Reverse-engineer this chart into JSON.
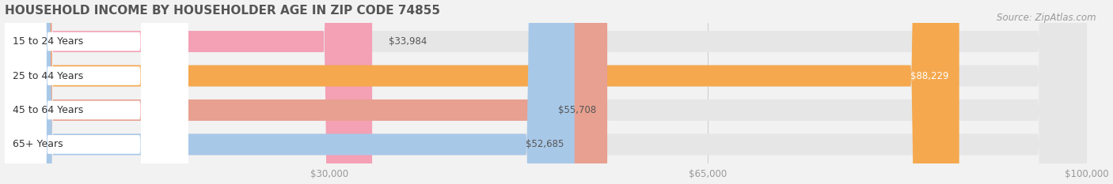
{
  "title": "HOUSEHOLD INCOME BY HOUSEHOLDER AGE IN ZIP CODE 74855",
  "source": "Source: ZipAtlas.com",
  "categories": [
    "15 to 24 Years",
    "25 to 44 Years",
    "45 to 64 Years",
    "65+ Years"
  ],
  "values": [
    33984,
    88229,
    55708,
    52685
  ],
  "bar_colors": [
    "#f4a0b5",
    "#f5a84e",
    "#e8a090",
    "#a8c8e8"
  ],
  "value_colors": [
    "#555555",
    "#ffffff",
    "#555555",
    "#555555"
  ],
  "xlim_min": 0,
  "xlim_max": 100000,
  "xticks": [
    30000,
    65000,
    100000
  ],
  "xtick_labels": [
    "$30,000",
    "$65,000",
    "$100,000"
  ],
  "bg_color": "#f2f2f2",
  "bar_bg_color": "#e6e6e6",
  "bar_bg_shadow": "#d8d8d8",
  "title_fontsize": 11,
  "source_fontsize": 8.5,
  "tick_fontsize": 8.5,
  "category_fontsize": 9,
  "value_fontsize": 8.5,
  "bar_height": 0.62,
  "bar_gap": 0.38
}
